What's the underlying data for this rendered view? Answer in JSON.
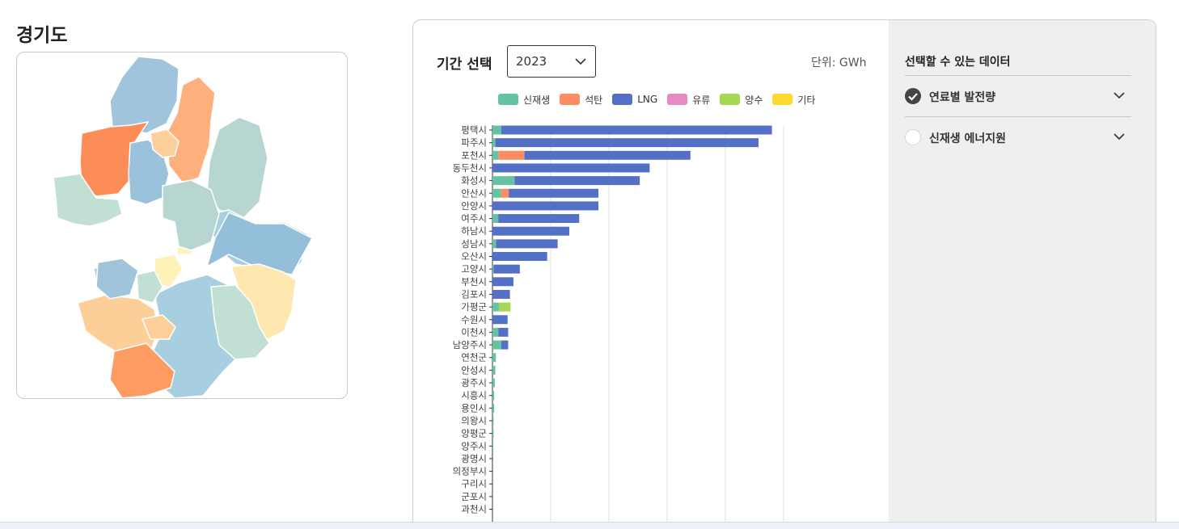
{
  "page": {
    "title": "경기도"
  },
  "controls": {
    "period_label": "기간 선택",
    "year_value": "2023",
    "unit_label": "단위: GWh"
  },
  "legend": [
    {
      "label": "신재생",
      "color": "#66c2a5"
    },
    {
      "label": "석탄",
      "color": "#fc8d62"
    },
    {
      "label": "LNG",
      "color": "#5470c6"
    },
    {
      "label": "유류",
      "color": "#e78ac3"
    },
    {
      "label": "양수",
      "color": "#a6d854"
    },
    {
      "label": "기타",
      "color": "#ffd92f"
    }
  ],
  "side": {
    "title": "선택할 수 있는 데이터",
    "items": [
      {
        "label": "연료별 발전량",
        "checked": true
      },
      {
        "label": "신재생 에너지원",
        "checked": false
      }
    ]
  },
  "chart_data": {
    "type": "bar",
    "orientation": "horizontal",
    "stacked": true,
    "xlabel": "GWh",
    "xlim": [
      0,
      5000
    ],
    "grid": true,
    "categories": [
      "평택시",
      "파주시",
      "포천시",
      "동두천시",
      "화성시",
      "안산시",
      "안양시",
      "여주시",
      "하남시",
      "성남시",
      "오산시",
      "고양시",
      "부천시",
      "김포시",
      "가평군",
      "수원시",
      "이천시",
      "남양주시",
      "연천군",
      "안성시",
      "광주시",
      "시흥시",
      "용인시",
      "의왕시",
      "양평군",
      "양주시",
      "광명시",
      "의정부시",
      "구리시",
      "군포시",
      "과천시"
    ],
    "series": [
      {
        "name": "신재생",
        "values": [
          150,
          50,
          100,
          0,
          380,
          150,
          0,
          100,
          0,
          60,
          0,
          20,
          0,
          0,
          110,
          0,
          100,
          150,
          60,
          50,
          40,
          30,
          30,
          20,
          20,
          15,
          0,
          0,
          0,
          0,
          0
        ]
      },
      {
        "name": "석탄",
        "values": [
          0,
          0,
          450,
          0,
          0,
          130,
          0,
          0,
          0,
          0,
          0,
          0,
          0,
          0,
          0,
          0,
          0,
          0,
          0,
          0,
          0,
          0,
          0,
          0,
          0,
          0,
          0,
          0,
          0,
          0,
          0
        ]
      },
      {
        "name": "LNG",
        "values": [
          4650,
          4520,
          2850,
          2700,
          2150,
          1540,
          1820,
          1390,
          1320,
          1060,
          940,
          450,
          360,
          300,
          0,
          260,
          170,
          120,
          0,
          0,
          0,
          0,
          0,
          0,
          0,
          0,
          0,
          0,
          0,
          0,
          0
        ]
      },
      {
        "name": "유류",
        "values": [
          0,
          0,
          0,
          0,
          0,
          0,
          0,
          0,
          0,
          0,
          0,
          0,
          0,
          0,
          0,
          0,
          0,
          0,
          0,
          0,
          0,
          0,
          0,
          0,
          0,
          0,
          0,
          0,
          0,
          0,
          0
        ]
      },
      {
        "name": "양수",
        "values": [
          0,
          0,
          0,
          0,
          0,
          0,
          0,
          0,
          0,
          0,
          0,
          0,
          0,
          0,
          200,
          0,
          0,
          0,
          0,
          0,
          0,
          0,
          0,
          0,
          0,
          0,
          0,
          0,
          0,
          0,
          0
        ]
      },
      {
        "name": "기타",
        "values": [
          0,
          0,
          0,
          0,
          0,
          0,
          0,
          0,
          0,
          0,
          0,
          0,
          0,
          0,
          0,
          0,
          0,
          0,
          0,
          0,
          0,
          0,
          0,
          0,
          0,
          0,
          0,
          0,
          0,
          0,
          0
        ]
      }
    ]
  },
  "map": {
    "region_colors": [
      "#a0c4dc",
      "#fdb07c",
      "#fc8d59",
      "#9ac2dc",
      "#fdd09b",
      "#b7d6d2",
      "#a7cfe0",
      "#fee8b0",
      "#fdcf98",
      "#fe9b61",
      "#94bfdb",
      "#fff2b8",
      "#c2dfd4"
    ]
  }
}
